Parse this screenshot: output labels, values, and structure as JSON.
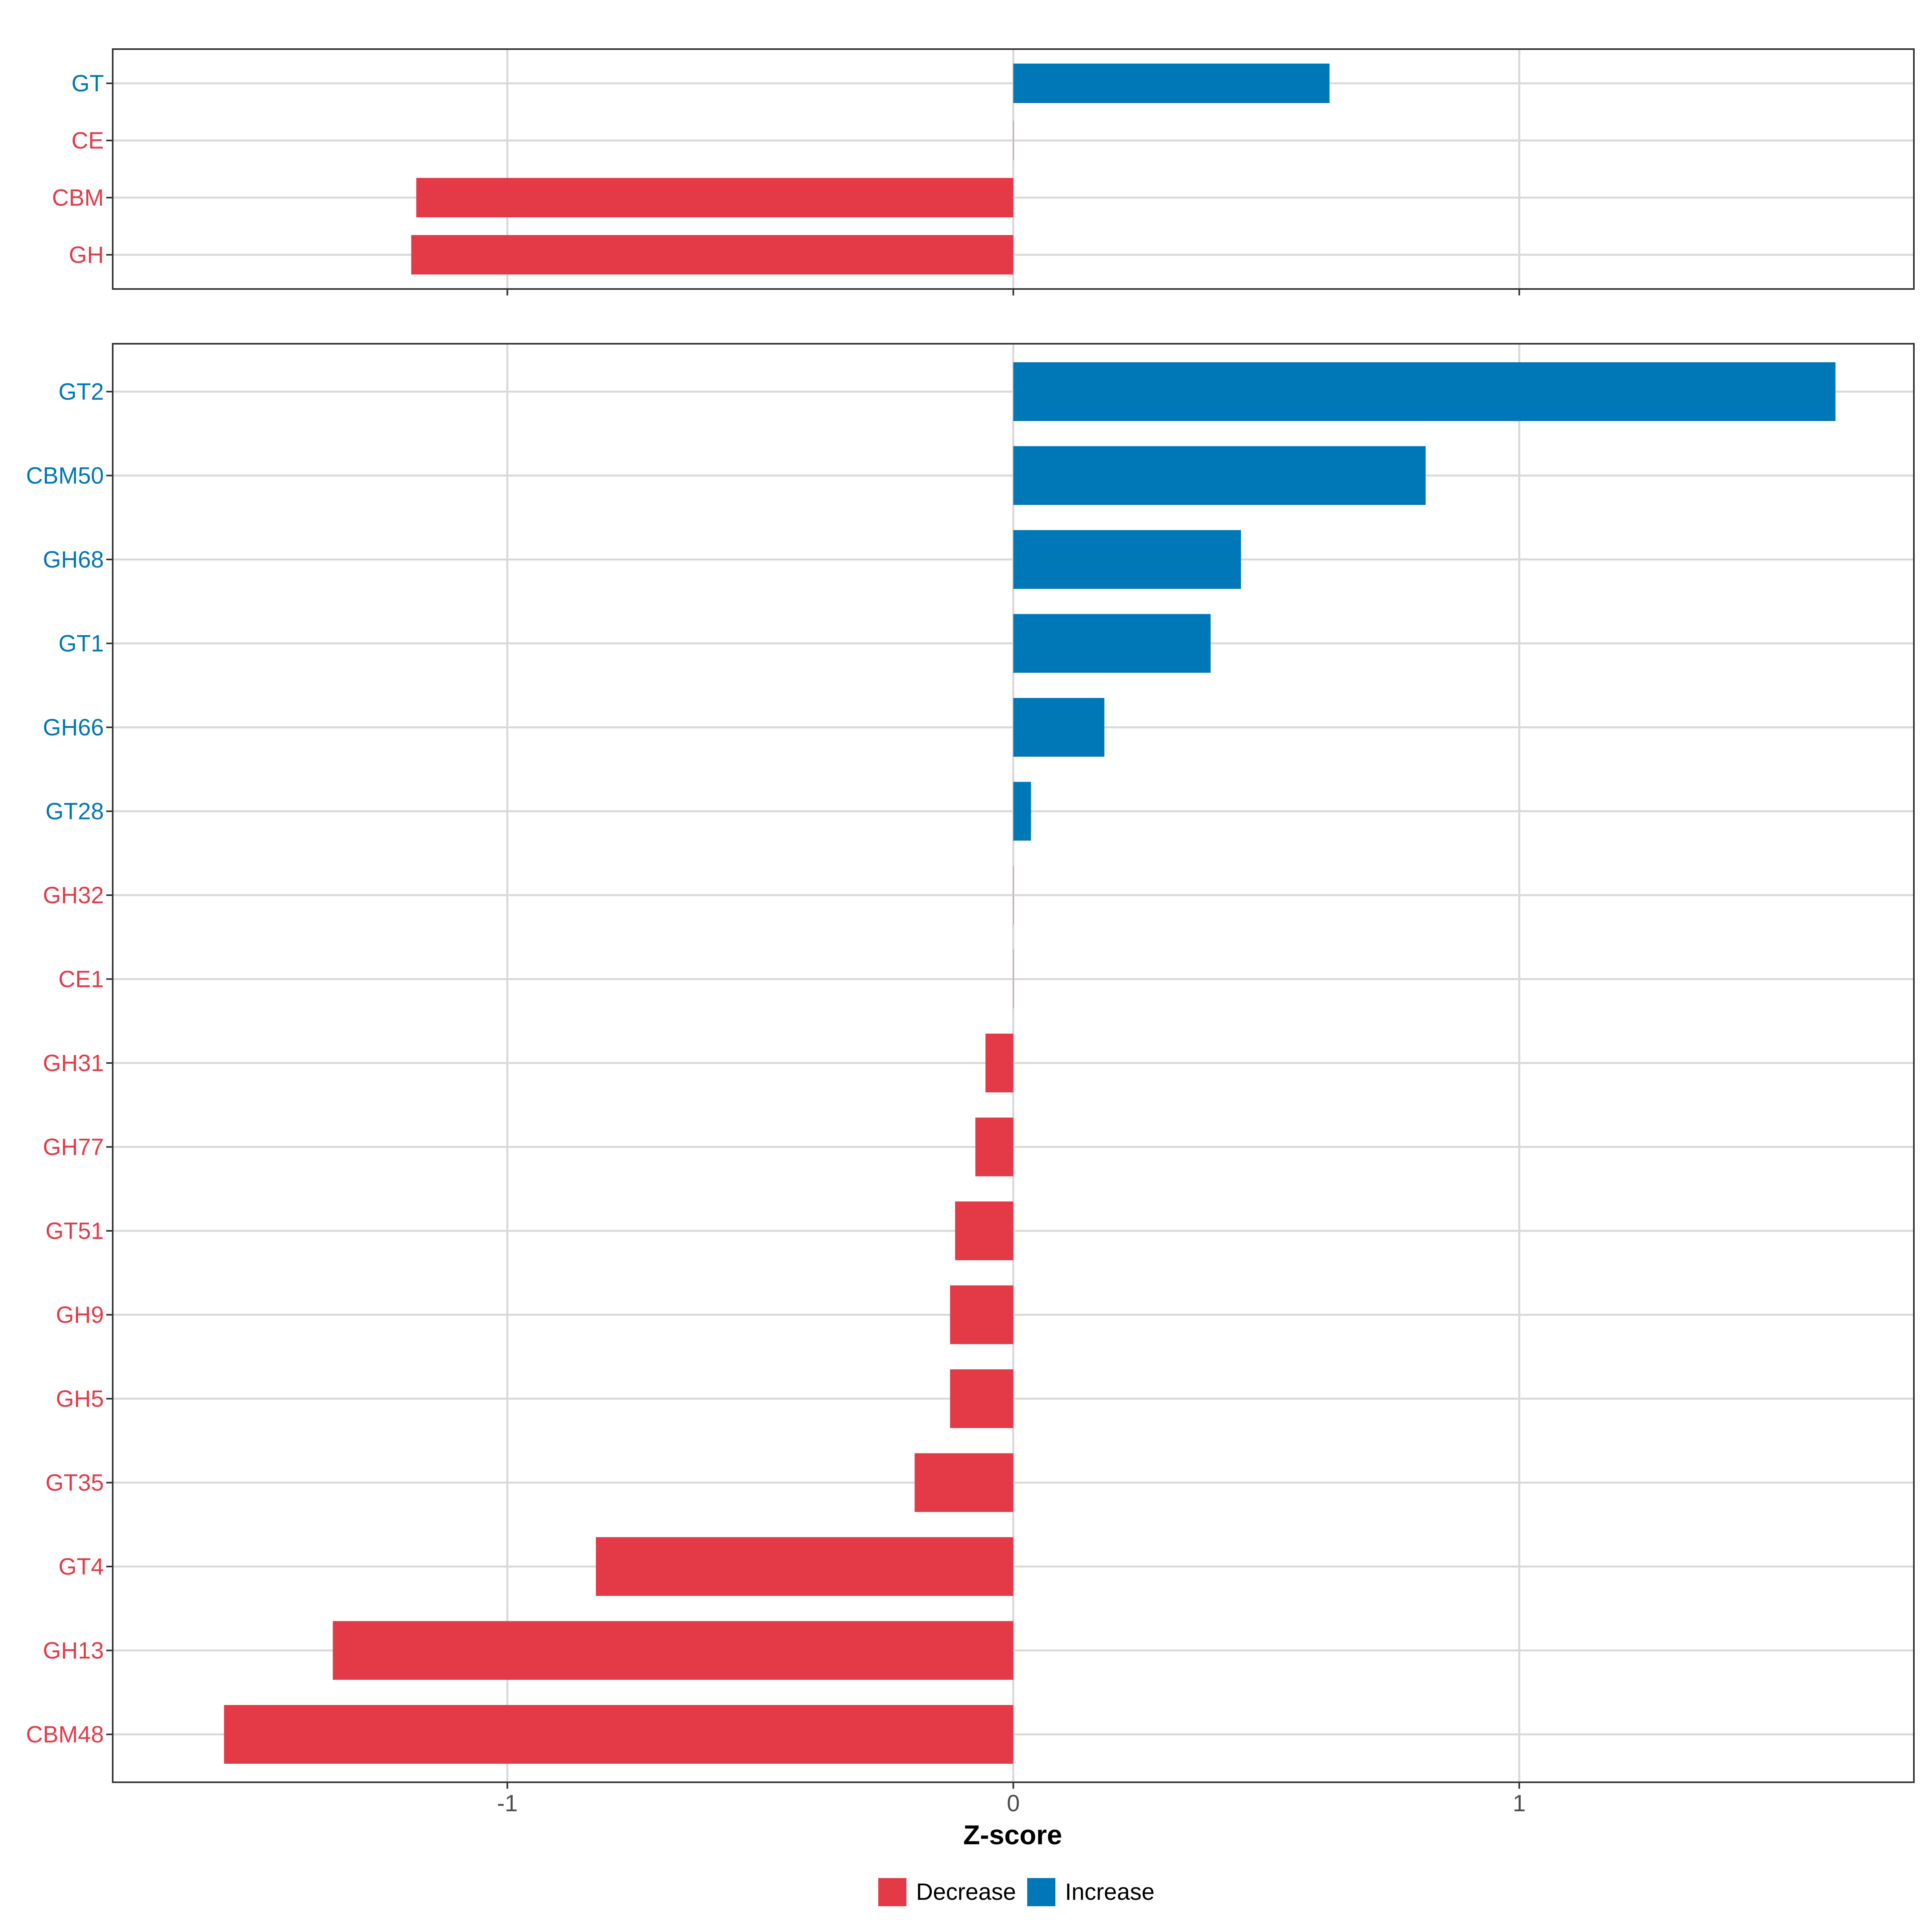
{
  "chart_data": {
    "type": "bar",
    "orientation": "horizontal",
    "xlabel": "Z-score",
    "xlim": [
      -1.78,
      1.78
    ],
    "xticks": [
      -1,
      0,
      1
    ],
    "xtick_labels": [
      "-1",
      "0",
      "1"
    ],
    "grid": true,
    "colors": {
      "Decrease": "#E43A47",
      "Increase": "#0077B6"
    },
    "legend": {
      "position": "bottom",
      "entries": [
        "Decrease",
        "Increase"
      ]
    },
    "panels": [
      {
        "name": "class",
        "categories": [
          "GT",
          "CE",
          "CBM",
          "GH"
        ],
        "values": [
          0.625,
          0.0,
          -1.18,
          -1.19
        ],
        "direction": [
          "Increase",
          "Decrease",
          "Decrease",
          "Decrease"
        ]
      },
      {
        "name": "family",
        "categories": [
          "GT2",
          "CBM50",
          "GH68",
          "GT1",
          "GH66",
          "GT28",
          "GH32",
          "CE1",
          "GH31",
          "GH77",
          "GT51",
          "GH9",
          "GH5",
          "GT35",
          "GT4",
          "GH13",
          "CBM48"
        ],
        "values": [
          1.625,
          0.815,
          0.45,
          0.39,
          0.18,
          0.035,
          0.0,
          0.0,
          -0.055,
          -0.075,
          -0.115,
          -0.125,
          -0.125,
          -0.195,
          -0.825,
          -1.345,
          -1.56
        ],
        "direction": [
          "Increase",
          "Increase",
          "Increase",
          "Increase",
          "Increase",
          "Increase",
          "Decrease",
          "Decrease",
          "Decrease",
          "Decrease",
          "Decrease",
          "Decrease",
          "Decrease",
          "Decrease",
          "Decrease",
          "Decrease",
          "Decrease"
        ]
      }
    ]
  }
}
